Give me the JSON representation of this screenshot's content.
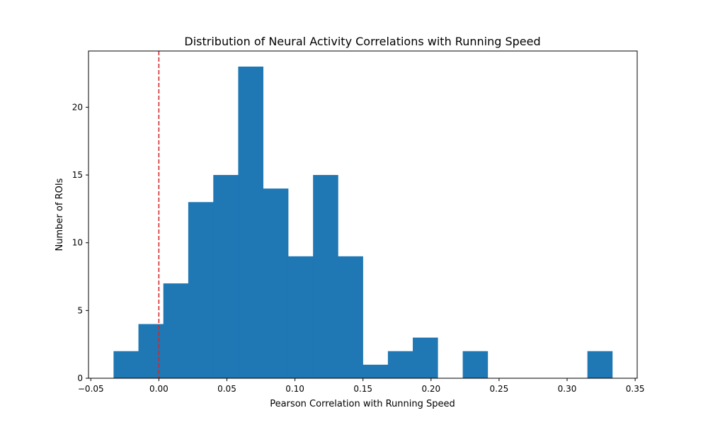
{
  "chart_data": {
    "type": "bar",
    "title": "Distribution of Neural Activity Correlations with Running Speed",
    "xlabel": "Pearson Correlation with Running Speed",
    "ylabel": "Number of ROIs",
    "bin_edges": [
      -0.0333,
      -0.015,
      0.0033,
      0.0216,
      0.04,
      0.0583,
      0.0766,
      0.095,
      0.1133,
      0.1316,
      0.1499,
      0.1683,
      0.1866,
      0.2049,
      0.2233,
      0.2416,
      0.2599,
      0.2782,
      0.2966,
      0.3149,
      0.3332
    ],
    "counts": [
      2,
      4,
      7,
      13,
      15,
      23,
      14,
      9,
      15,
      9,
      1,
      2,
      3,
      0,
      2,
      0,
      0,
      0,
      0,
      2
    ],
    "xlim": [
      -0.0517,
      0.3515
    ],
    "ylim": [
      0,
      24.15
    ],
    "x_ticks": [
      -0.05,
      0.0,
      0.05,
      0.1,
      0.15,
      0.2,
      0.25,
      0.3,
      0.35
    ],
    "x_tick_labels": [
      "−0.05",
      "0.00",
      "0.05",
      "0.10",
      "0.15",
      "0.20",
      "0.25",
      "0.30",
      "0.35"
    ],
    "y_ticks": [
      0,
      5,
      10,
      15,
      20
    ],
    "y_tick_labels": [
      "0",
      "5",
      "10",
      "15",
      "20"
    ],
    "reference_line": {
      "x": 0.0,
      "color": "#d62728",
      "style": "dashed"
    },
    "bar_color": "#1f77b4",
    "grid": false,
    "legend": "none"
  }
}
